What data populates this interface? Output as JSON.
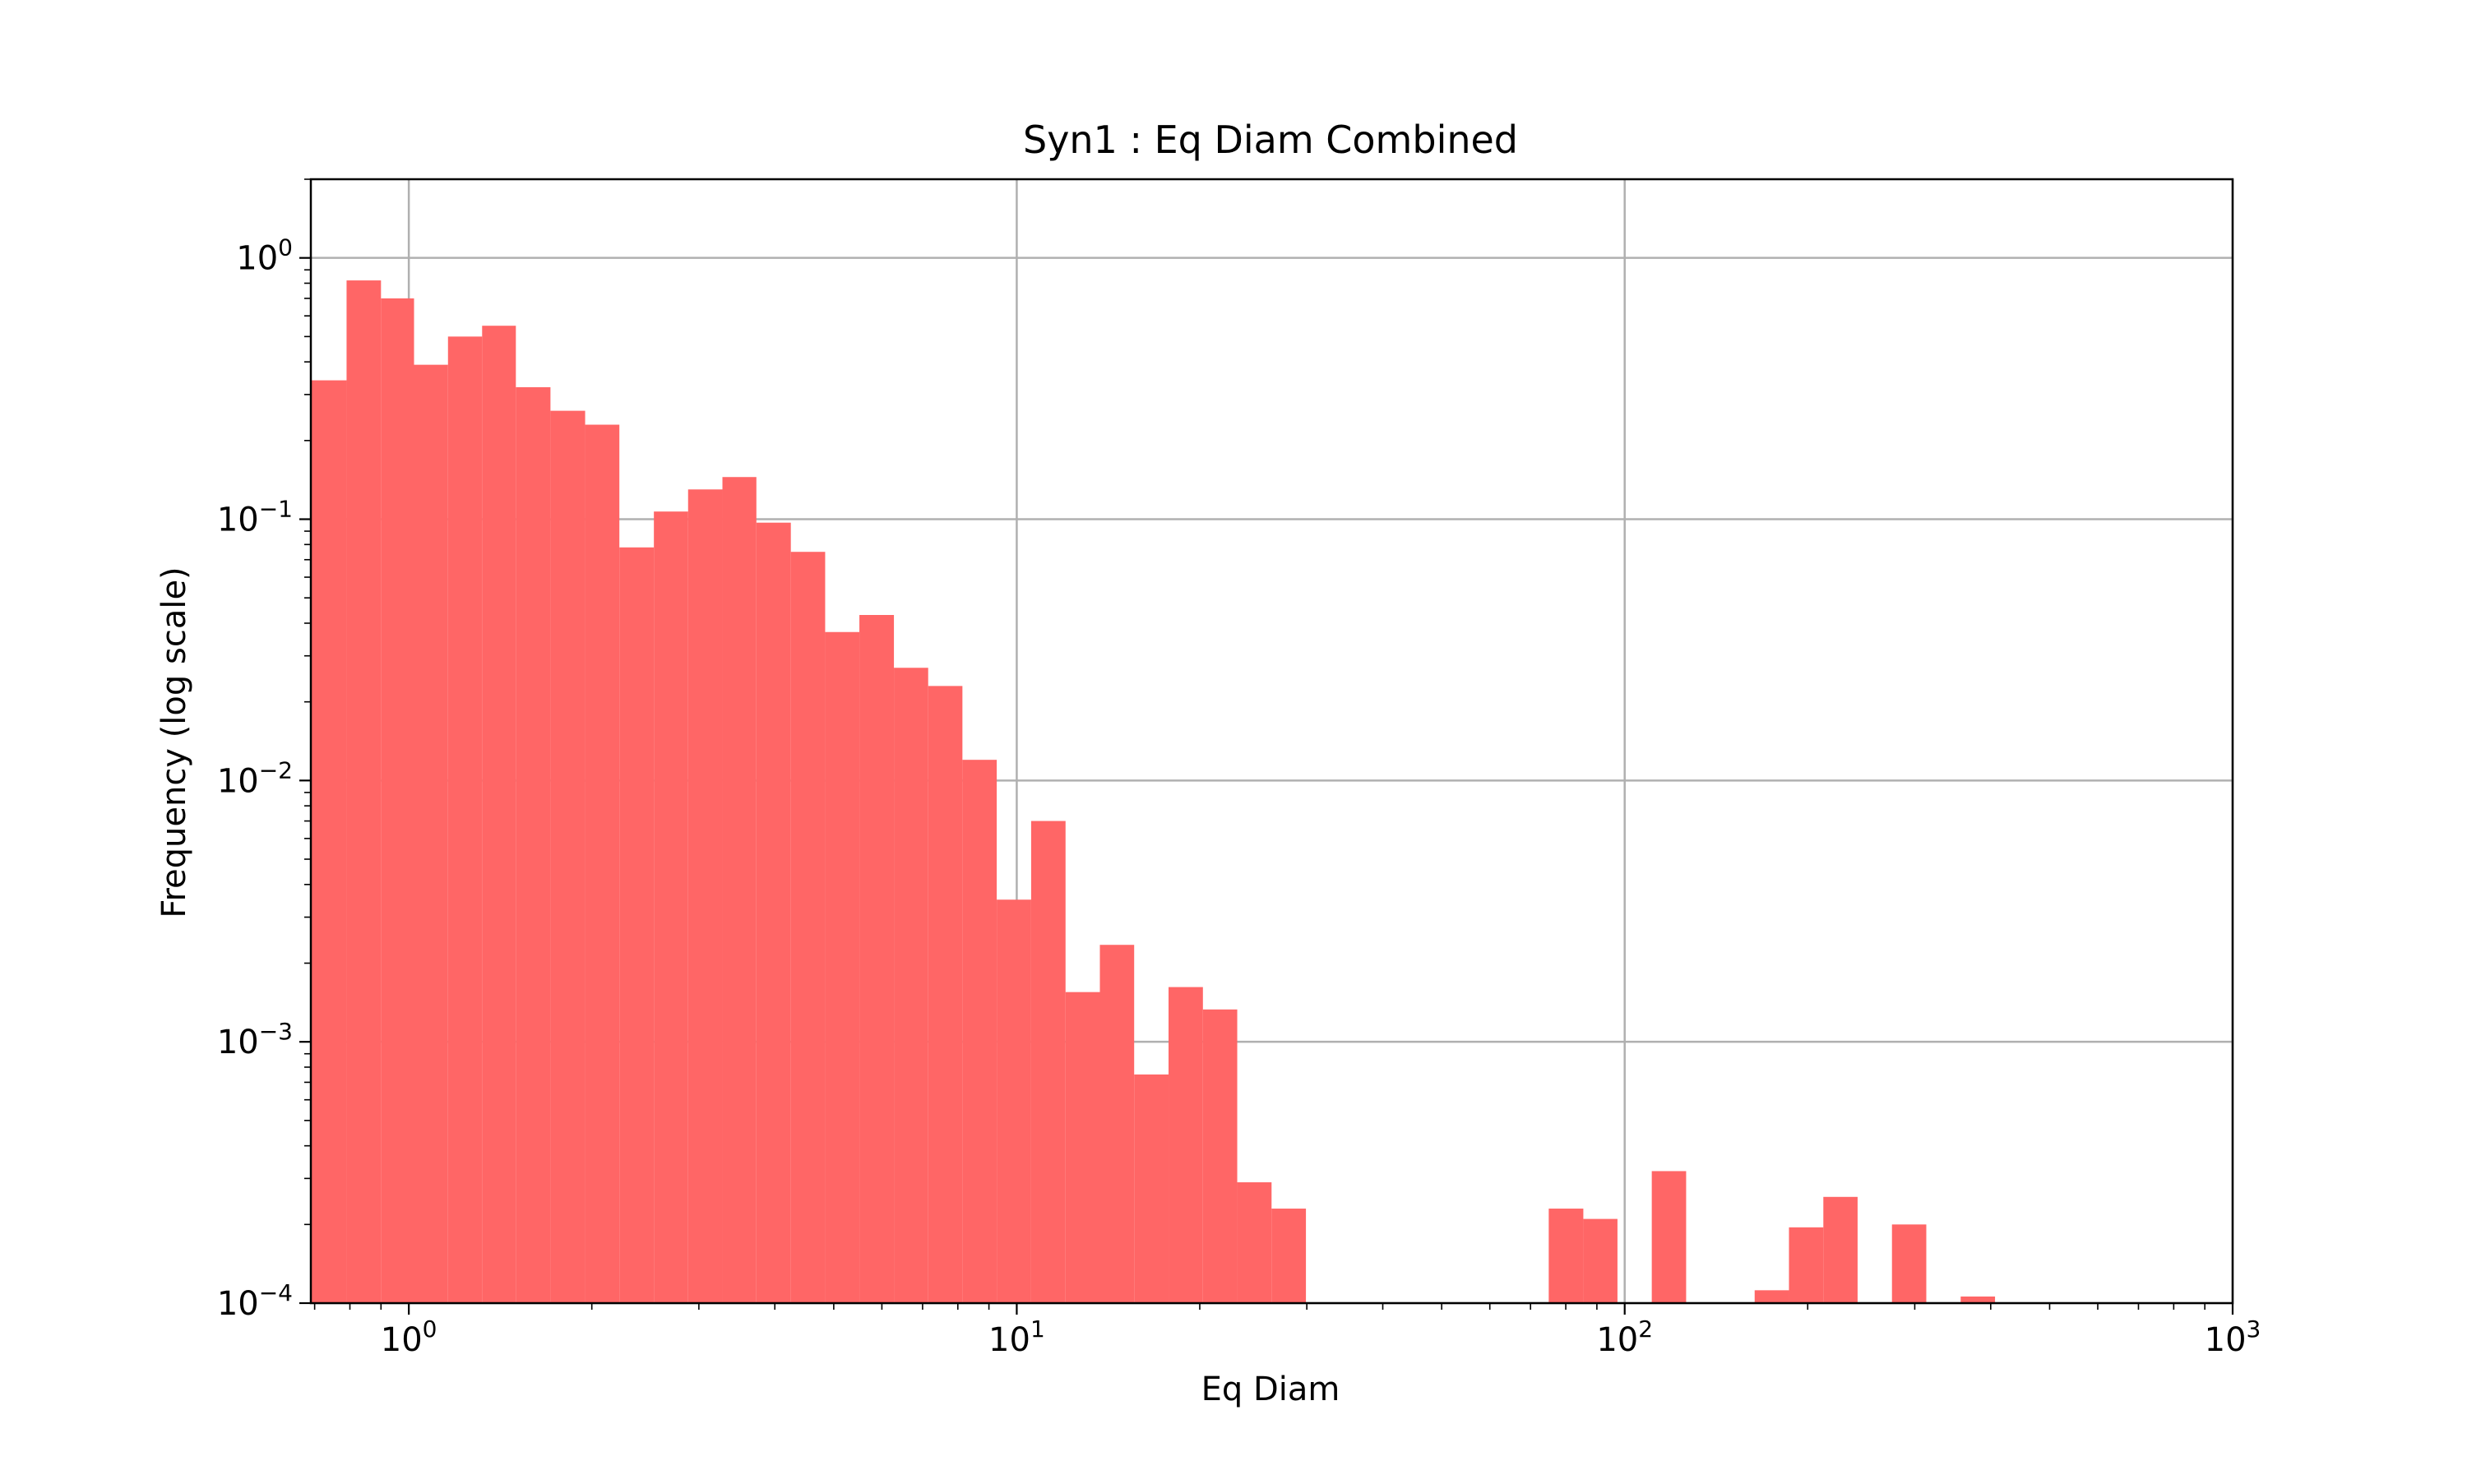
{
  "chart_data": {
    "type": "bar",
    "title": "Syn1 : Eq Diam Combined",
    "xlabel": "Eq Diam",
    "ylabel": "Frequency (log scale)",
    "xscale": "log",
    "yscale": "log",
    "xlim": [
      0.69,
      1000
    ],
    "ylim": [
      0.0001,
      2.0
    ],
    "grid": true,
    "bar_color": "#ff6666",
    "xticks": [
      {
        "base": "10",
        "exp": "0",
        "value": 1
      },
      {
        "base": "10",
        "exp": "1",
        "value": 10
      },
      {
        "base": "10",
        "exp": "2",
        "value": 100
      },
      {
        "base": "10",
        "exp": "3",
        "value": 1000
      }
    ],
    "yticks": [
      {
        "base": "10",
        "exp": "0",
        "value": 1
      },
      {
        "base": "10",
        "exp": "−1",
        "value": 0.1
      },
      {
        "base": "10",
        "exp": "−2",
        "value": 0.01
      },
      {
        "base": "10",
        "exp": "−3",
        "value": 0.001
      },
      {
        "base": "10",
        "exp": "−4",
        "value": 0.0001
      }
    ],
    "bins": [
      {
        "x0": 0.69,
        "x1": 0.79,
        "y": 0.34
      },
      {
        "x0": 0.79,
        "x1": 0.9,
        "y": 0.82
      },
      {
        "x0": 0.9,
        "x1": 1.02,
        "y": 0.7
      },
      {
        "x0": 1.02,
        "x1": 1.16,
        "y": 0.39
      },
      {
        "x0": 1.16,
        "x1": 1.32,
        "y": 0.5
      },
      {
        "x0": 1.32,
        "x1": 1.5,
        "y": 0.55
      },
      {
        "x0": 1.5,
        "x1": 1.71,
        "y": 0.32
      },
      {
        "x0": 1.71,
        "x1": 1.95,
        "y": 0.26
      },
      {
        "x0": 1.95,
        "x1": 2.22,
        "y": 0.23
      },
      {
        "x0": 2.22,
        "x1": 2.53,
        "y": 0.078
      },
      {
        "x0": 2.53,
        "x1": 2.88,
        "y": 0.107
      },
      {
        "x0": 2.88,
        "x1": 3.28,
        "y": 0.13
      },
      {
        "x0": 3.28,
        "x1": 3.73,
        "y": 0.145
      },
      {
        "x0": 3.73,
        "x1": 4.25,
        "y": 0.097
      },
      {
        "x0": 4.25,
        "x1": 4.84,
        "y": 0.075
      },
      {
        "x0": 4.84,
        "x1": 5.51,
        "y": 0.037
      },
      {
        "x0": 5.51,
        "x1": 6.28,
        "y": 0.043
      },
      {
        "x0": 6.28,
        "x1": 7.15,
        "y": 0.027
      },
      {
        "x0": 7.15,
        "x1": 8.14,
        "y": 0.023
      },
      {
        "x0": 8.14,
        "x1": 9.27,
        "y": 0.012
      },
      {
        "x0": 9.27,
        "x1": 10.56,
        "y": 0.0035
      },
      {
        "x0": 10.56,
        "x1": 12.03,
        "y": 0.007
      },
      {
        "x0": 12.03,
        "x1": 13.7,
        "y": 0.00155
      },
      {
        "x0": 13.7,
        "x1": 15.6,
        "y": 0.00235
      },
      {
        "x0": 15.6,
        "x1": 17.77,
        "y": 0.00075
      },
      {
        "x0": 17.77,
        "x1": 20.24,
        "y": 0.00162
      },
      {
        "x0": 20.24,
        "x1": 23.05,
        "y": 0.00133
      },
      {
        "x0": 23.05,
        "x1": 26.25,
        "y": 0.00029
      },
      {
        "x0": 26.25,
        "x1": 29.9,
        "y": 0.00023
      },
      {
        "x0": 75.0,
        "x1": 85.5,
        "y": 0.00023
      },
      {
        "x0": 85.5,
        "x1": 97.3,
        "y": 0.00021
      },
      {
        "x0": 110.8,
        "x1": 126.2,
        "y": 0.00032
      },
      {
        "x0": 163.6,
        "x1": 186.3,
        "y": 0.000112
      },
      {
        "x0": 186.3,
        "x1": 212.2,
        "y": 0.000195
      },
      {
        "x0": 212.2,
        "x1": 241.6,
        "y": 0.000255
      },
      {
        "x0": 275.2,
        "x1": 313.4,
        "y": 0.0002
      },
      {
        "x0": 357.0,
        "x1": 406.6,
        "y": 0.000106
      }
    ]
  }
}
